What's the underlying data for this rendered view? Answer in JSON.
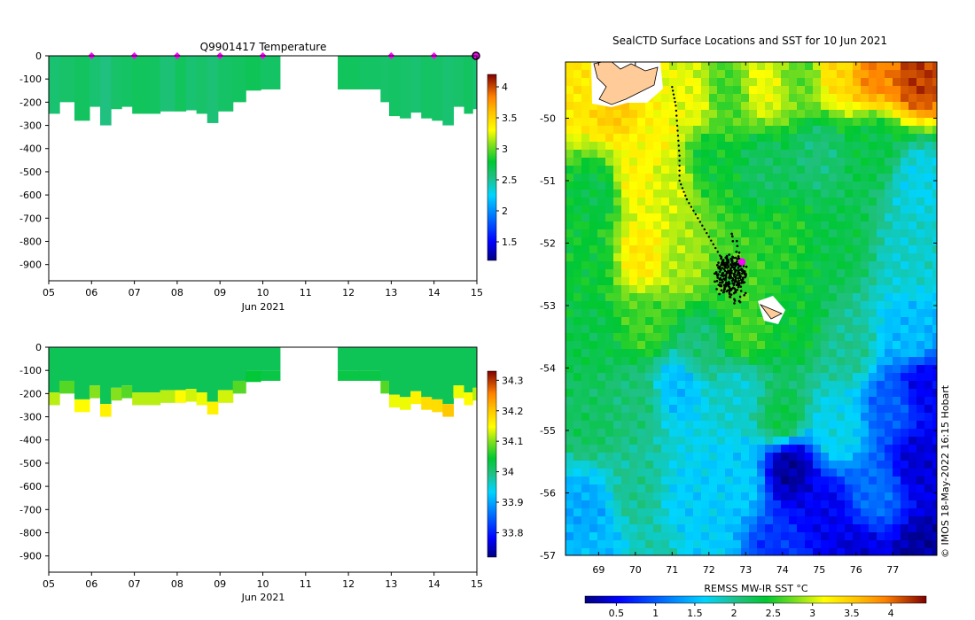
{
  "colors": {
    "parula_ramp": [
      "#00007f",
      "#0000ff",
      "#0080ff",
      "#00d4ff",
      "#20c080",
      "#00c832",
      "#7fe01e",
      "#c8ee14",
      "#ffff00",
      "#ffc000",
      "#ff8000",
      "#d04000",
      "#7f0000"
    ],
    "marker": "#ff00ff",
    "land": "#ffcc99"
  },
  "chart_data": [
    {
      "type": "heatmap",
      "name": "temperature-section",
      "title": "Q9901417  Temperature",
      "xlabel": "Jun 2021",
      "ylabel": "",
      "xlim": [
        5,
        15
      ],
      "ylim": [
        0,
        -970
      ],
      "xticks": [
        "05",
        "06",
        "07",
        "08",
        "09",
        "10",
        "11",
        "12",
        "13",
        "14",
        "15"
      ],
      "yticks": [
        "0",
        "-100",
        "-200",
        "-300",
        "-400",
        "-500",
        "-600",
        "-700",
        "-800",
        "-900"
      ],
      "colorbar": {
        "min": 1.2,
        "max": 4.2,
        "ticks": [
          "1.5",
          "2",
          "2.5",
          "3",
          "3.5",
          "4"
        ]
      },
      "profile_markers_day": [
        6,
        7,
        8,
        9,
        10,
        13,
        14,
        15
      ],
      "gap_days": [
        10.4,
        11.75
      ],
      "profiles": [
        {
          "d": 5.0,
          "depth": 250,
          "v": 2.6
        },
        {
          "d": 5.25,
          "depth": 200,
          "v": 2.62
        },
        {
          "d": 5.6,
          "depth": 280,
          "v": 2.65
        },
        {
          "d": 5.95,
          "depth": 220,
          "v": 2.6
        },
        {
          "d": 6.2,
          "depth": 300,
          "v": 2.55
        },
        {
          "d": 6.45,
          "depth": 230,
          "v": 2.62
        },
        {
          "d": 6.7,
          "depth": 220,
          "v": 2.64
        },
        {
          "d": 6.95,
          "depth": 250,
          "v": 2.66
        },
        {
          "d": 7.3,
          "depth": 250,
          "v": 2.65
        },
        {
          "d": 7.6,
          "depth": 240,
          "v": 2.58
        },
        {
          "d": 7.95,
          "depth": 240,
          "v": 2.66
        },
        {
          "d": 8.2,
          "depth": 235,
          "v": 2.6
        },
        {
          "d": 8.45,
          "depth": 250,
          "v": 2.62
        },
        {
          "d": 8.7,
          "depth": 290,
          "v": 2.58
        },
        {
          "d": 8.95,
          "depth": 240,
          "v": 2.63
        },
        {
          "d": 9.3,
          "depth": 200,
          "v": 2.65
        },
        {
          "d": 9.6,
          "depth": 150,
          "v": 2.68
        },
        {
          "d": 9.95,
          "depth": 145,
          "v": 2.64
        },
        {
          "d": 11.75,
          "depth": 145,
          "v": 2.66
        },
        {
          "d": 12.25,
          "depth": 145,
          "v": 2.64
        },
        {
          "d": 12.75,
          "depth": 200,
          "v": 2.62
        },
        {
          "d": 12.95,
          "depth": 260,
          "v": 2.64
        },
        {
          "d": 13.2,
          "depth": 270,
          "v": 2.62
        },
        {
          "d": 13.45,
          "depth": 245,
          "v": 2.6
        },
        {
          "d": 13.7,
          "depth": 270,
          "v": 2.64
        },
        {
          "d": 13.95,
          "depth": 280,
          "v": 2.63
        },
        {
          "d": 14.2,
          "depth": 300,
          "v": 2.6
        },
        {
          "d": 14.45,
          "depth": 220,
          "v": 2.62
        },
        {
          "d": 14.7,
          "depth": 250,
          "v": 2.65
        },
        {
          "d": 14.9,
          "depth": 230,
          "v": 2.6
        }
      ]
    },
    {
      "type": "heatmap",
      "name": "salinity-section",
      "title": "",
      "xlabel": "Jun 2021",
      "ylabel": "",
      "xlim": [
        5,
        15
      ],
      "ylim": [
        0,
        -970
      ],
      "xticks": [
        "05",
        "06",
        "07",
        "08",
        "09",
        "10",
        "11",
        "12",
        "13",
        "14",
        "15"
      ],
      "yticks": [
        "0",
        "-100",
        "-200",
        "-300",
        "-400",
        "-500",
        "-600",
        "-700",
        "-800",
        "-900"
      ],
      "colorbar": {
        "min": 33.72,
        "max": 34.33,
        "ticks": [
          "33.8",
          "33.9",
          "34",
          "34.1",
          "34.2",
          "34.3"
        ]
      },
      "gap_days": [
        10.4,
        11.75
      ],
      "surface_value": 34.02,
      "deep_value": 34.14,
      "profiles": [
        {
          "d": 5.0,
          "depth": 250,
          "v": 34.12
        },
        {
          "d": 5.25,
          "depth": 200,
          "v": 34.08
        },
        {
          "d": 5.6,
          "depth": 280,
          "v": 34.15
        },
        {
          "d": 5.95,
          "depth": 220,
          "v": 34.1
        },
        {
          "d": 6.2,
          "depth": 300,
          "v": 34.16
        },
        {
          "d": 6.45,
          "depth": 230,
          "v": 34.1
        },
        {
          "d": 6.7,
          "depth": 220,
          "v": 34.08
        },
        {
          "d": 6.95,
          "depth": 250,
          "v": 34.12
        },
        {
          "d": 7.3,
          "depth": 250,
          "v": 34.12
        },
        {
          "d": 7.6,
          "depth": 240,
          "v": 34.12
        },
        {
          "d": 7.95,
          "depth": 240,
          "v": 34.15
        },
        {
          "d": 8.2,
          "depth": 235,
          "v": 34.13
        },
        {
          "d": 8.45,
          "depth": 250,
          "v": 34.14
        },
        {
          "d": 8.7,
          "depth": 290,
          "v": 34.16
        },
        {
          "d": 8.95,
          "depth": 240,
          "v": 34.13
        },
        {
          "d": 9.3,
          "depth": 200,
          "v": 34.08
        },
        {
          "d": 9.6,
          "depth": 150,
          "v": 34.04
        },
        {
          "d": 9.95,
          "depth": 145,
          "v": 34.03
        },
        {
          "d": 11.75,
          "depth": 145,
          "v": 34.03
        },
        {
          "d": 12.25,
          "depth": 145,
          "v": 34.03
        },
        {
          "d": 12.75,
          "depth": 200,
          "v": 34.08
        },
        {
          "d": 12.95,
          "depth": 260,
          "v": 34.14
        },
        {
          "d": 13.2,
          "depth": 270,
          "v": 34.14
        },
        {
          "d": 13.45,
          "depth": 245,
          "v": 34.16
        },
        {
          "d": 13.7,
          "depth": 270,
          "v": 34.18
        },
        {
          "d": 13.95,
          "depth": 280,
          "v": 34.18
        },
        {
          "d": 14.2,
          "depth": 300,
          "v": 34.2
        },
        {
          "d": 14.45,
          "depth": 220,
          "v": 34.14
        },
        {
          "d": 14.7,
          "depth": 250,
          "v": 34.15
        },
        {
          "d": 14.9,
          "depth": 230,
          "v": 34.12
        }
      ]
    },
    {
      "type": "heatmap",
      "name": "sst-map",
      "title": "SealCTD Surface Locations and SST for 10 Jun 2021",
      "xlabel": "",
      "ylabel": "",
      "xlim": [
        68.1,
        78.2
      ],
      "ylim": [
        -57.0,
        -49.1
      ],
      "xticks": [
        "69",
        "70",
        "71",
        "72",
        "73",
        "74",
        "75",
        "76",
        "77"
      ],
      "yticks": [
        "-50",
        "-51",
        "-52",
        "-53",
        "-54",
        "-55",
        "-56",
        "-57"
      ],
      "colorbar": {
        "label": "REMSS MW-IR SST °C",
        "min": 0.1,
        "max": 4.45,
        "ticks": [
          "0.5",
          "1",
          "1.5",
          "2",
          "2.5",
          "3",
          "3.5",
          "4"
        ]
      },
      "track": [
        [
          71.0,
          -49.5
        ],
        [
          71.1,
          -49.8
        ],
        [
          71.15,
          -50.2
        ],
        [
          71.2,
          -50.6
        ],
        [
          71.2,
          -51.0
        ],
        [
          71.4,
          -51.3
        ],
        [
          71.7,
          -51.6
        ],
        [
          72.0,
          -51.9
        ],
        [
          72.3,
          -52.2
        ],
        [
          72.5,
          -52.4
        ],
        [
          72.6,
          -52.6
        ]
      ],
      "cluster_center": [
        72.6,
        -52.5
      ],
      "latest_position": [
        72.9,
        -52.3
      ],
      "sst_anchors": [
        {
          "lon": 68.5,
          "lat": -49.5,
          "v": 3.3
        },
        {
          "lon": 69.5,
          "lat": -49.8,
          "v": 3.5
        },
        {
          "lon": 70.5,
          "lat": -50.3,
          "v": 3.2
        },
        {
          "lon": 71.5,
          "lat": -49.7,
          "v": 3.1
        },
        {
          "lon": 72.5,
          "lat": -49.6,
          "v": 2.6
        },
        {
          "lon": 73.5,
          "lat": -49.5,
          "v": 3.1
        },
        {
          "lon": 74.5,
          "lat": -49.3,
          "v": 2.7
        },
        {
          "lon": 75.5,
          "lat": -49.2,
          "v": 3.4
        },
        {
          "lon": 76.5,
          "lat": -49.2,
          "v": 3.9
        },
        {
          "lon": 77.7,
          "lat": -49.3,
          "v": 4.2
        },
        {
          "lon": 69.0,
          "lat": -51.2,
          "v": 2.3
        },
        {
          "lon": 70.0,
          "lat": -51.0,
          "v": 3.2
        },
        {
          "lon": 71.0,
          "lat": -51.0,
          "v": 3.0
        },
        {
          "lon": 72.0,
          "lat": -50.7,
          "v": 2.4
        },
        {
          "lon": 73.5,
          "lat": -50.8,
          "v": 2.2
        },
        {
          "lon": 75.0,
          "lat": -50.6,
          "v": 2.1
        },
        {
          "lon": 76.5,
          "lat": -50.5,
          "v": 2.3
        },
        {
          "lon": 77.7,
          "lat": -51.0,
          "v": 1.7
        },
        {
          "lon": 68.8,
          "lat": -52.3,
          "v": 2.4
        },
        {
          "lon": 70.2,
          "lat": -52.2,
          "v": 3.3
        },
        {
          "lon": 71.2,
          "lat": -52.3,
          "v": 2.9
        },
        {
          "lon": 72.8,
          "lat": -52.5,
          "v": 2.6
        },
        {
          "lon": 74.0,
          "lat": -52.0,
          "v": 2.5
        },
        {
          "lon": 75.5,
          "lat": -52.0,
          "v": 2.3
        },
        {
          "lon": 77.5,
          "lat": -52.2,
          "v": 1.8
        },
        {
          "lon": 68.8,
          "lat": -53.5,
          "v": 2.3
        },
        {
          "lon": 70.3,
          "lat": -53.3,
          "v": 2.6
        },
        {
          "lon": 71.8,
          "lat": -53.7,
          "v": 2.1
        },
        {
          "lon": 73.0,
          "lat": -53.4,
          "v": 2.6
        },
        {
          "lon": 74.3,
          "lat": -53.3,
          "v": 2.4
        },
        {
          "lon": 75.8,
          "lat": -53.7,
          "v": 2.0
        },
        {
          "lon": 77.5,
          "lat": -53.5,
          "v": 1.5
        },
        {
          "lon": 68.8,
          "lat": -54.8,
          "v": 2.2
        },
        {
          "lon": 70.0,
          "lat": -54.5,
          "v": 2.1
        },
        {
          "lon": 71.2,
          "lat": -54.3,
          "v": 1.5
        },
        {
          "lon": 72.8,
          "lat": -54.4,
          "v": 1.8
        },
        {
          "lon": 74.0,
          "lat": -54.8,
          "v": 2.3
        },
        {
          "lon": 75.5,
          "lat": -55.0,
          "v": 1.7
        },
        {
          "lon": 77.0,
          "lat": -54.6,
          "v": 1.0
        },
        {
          "lon": 77.8,
          "lat": -54.3,
          "v": 0.5
        },
        {
          "lon": 68.7,
          "lat": -56.3,
          "v": 1.4
        },
        {
          "lon": 70.0,
          "lat": -56.0,
          "v": 2.0
        },
        {
          "lon": 71.5,
          "lat": -56.2,
          "v": 1.6
        },
        {
          "lon": 72.8,
          "lat": -55.8,
          "v": 1.6
        },
        {
          "lon": 74.2,
          "lat": -55.6,
          "v": 0.2
        },
        {
          "lon": 75.2,
          "lat": -56.3,
          "v": 0.5
        },
        {
          "lon": 76.5,
          "lat": -56.0,
          "v": 1.1
        },
        {
          "lon": 77.7,
          "lat": -55.5,
          "v": 0.4
        },
        {
          "lon": 69.0,
          "lat": -57.0,
          "v": 1.5
        },
        {
          "lon": 70.5,
          "lat": -57.0,
          "v": 1.9
        },
        {
          "lon": 72.0,
          "lat": -57.0,
          "v": 1.6
        },
        {
          "lon": 73.8,
          "lat": -57.0,
          "v": 0.8
        },
        {
          "lon": 76.0,
          "lat": -57.0,
          "v": 0.4
        },
        {
          "lon": 77.8,
          "lat": -57.0,
          "v": 0.2
        }
      ]
    }
  ],
  "credit": "© IMOS 18-May-2022 16:15 Hobart"
}
